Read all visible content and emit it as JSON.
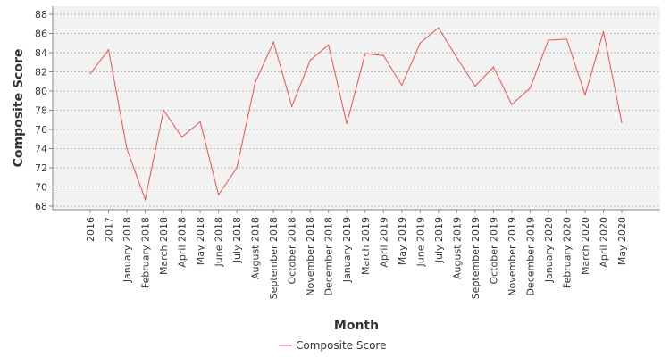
{
  "chart_data": {
    "type": "line",
    "xlabel": "Month",
    "ylabel": "Composite Score",
    "ylim": [
      68,
      88
    ],
    "yticks": [
      68,
      70,
      72,
      74,
      76,
      78,
      80,
      82,
      84,
      86,
      88
    ],
    "grid": "horizontal dashed",
    "legend_position": "bottom",
    "colors": {
      "series": "#f05050",
      "plot_bg": "#f2f2f2",
      "grid": "#7f7f7f",
      "axis": "#888888"
    },
    "categories": [
      "2016",
      "2017",
      "January 2018",
      "February 2018",
      "March 2018",
      "April 2018",
      "May 2018",
      "June 2018",
      "July 2018",
      "August 2018",
      "September 2018",
      "October 2018",
      "November 2018",
      "December 2018",
      "January 2019",
      "March 2019",
      "April 2019",
      "May 2019",
      "June 2019",
      "July 2019",
      "August 2019",
      "September 2019",
      "October 2019",
      "November 2019",
      "December 2019",
      "January 2020",
      "February 2020",
      "March 2020",
      "April 2020",
      "May 2020"
    ],
    "series": [
      {
        "name": "Composite Score",
        "values": [
          81.8,
          84.3,
          74.0,
          68.7,
          78.0,
          75.2,
          76.8,
          69.2,
          72.0,
          80.9,
          85.1,
          78.4,
          83.2,
          84.8,
          76.6,
          83.9,
          83.7,
          80.6,
          85.0,
          86.6,
          83.5,
          80.5,
          82.5,
          78.6,
          80.3,
          85.3,
          85.4,
          79.6,
          86.2,
          76.7
        ]
      }
    ]
  }
}
